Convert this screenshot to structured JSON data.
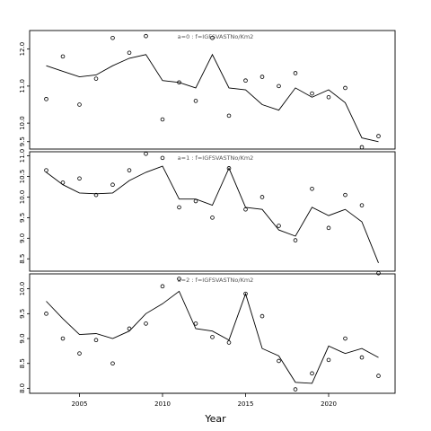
{
  "chart_data": {
    "type": "line",
    "xlabel": "Year",
    "x_ticks": [
      2005,
      2010,
      2015,
      2020
    ],
    "xlim": [
      2002,
      2024
    ],
    "colors": {
      "line": "#000000",
      "points": "#000000",
      "panel_title": "#555555"
    },
    "panels": [
      {
        "title": "a=0  :  f=IGFSVASTNo/Km2",
        "ylim": [
          9.3,
          12.5
        ],
        "y_ticks": [
          9.5,
          10.0,
          11.0,
          12.0
        ],
        "y_tick_labels": [
          "9.5",
          "10.0",
          "11.0",
          "12.0"
        ],
        "points": {
          "x": [
            2003,
            2004,
            2005,
            2006,
            2007,
            2008,
            2009,
            2010,
            2011,
            2012,
            2013,
            2014,
            2015,
            2016,
            2017,
            2018,
            2019,
            2020,
            2021,
            2022,
            2023
          ],
          "y": [
            10.65,
            11.8,
            10.5,
            11.2,
            12.3,
            11.9,
            12.35,
            10.1,
            11.1,
            10.6,
            12.3,
            10.2,
            11.15,
            11.25,
            11.0,
            11.35,
            10.8,
            10.7,
            10.95,
            9.35,
            9.65
          ]
        },
        "fit": {
          "x": [
            2003,
            2004,
            2005,
            2006,
            2007,
            2008,
            2009,
            2010,
            2011,
            2012,
            2013,
            2014,
            2015,
            2016,
            2017,
            2018,
            2019,
            2020,
            2021,
            2022,
            2023
          ],
          "y": [
            11.55,
            11.4,
            11.25,
            11.3,
            11.55,
            11.75,
            11.85,
            11.15,
            11.1,
            10.95,
            11.85,
            10.95,
            10.9,
            10.5,
            10.35,
            10.95,
            10.7,
            10.9,
            10.55,
            9.6,
            9.5
          ]
        }
      },
      {
        "title": "a=1  :  f=IGFSVASTNo/Km2",
        "ylim": [
          8.2,
          11.1
        ],
        "y_ticks": [
          8.5,
          9.0,
          9.5,
          10.0,
          10.5,
          11.0
        ],
        "y_tick_labels": [
          "8.5",
          "9.0",
          "9.5",
          "10.0",
          "10.5",
          "11.0"
        ],
        "points": {
          "x": [
            2003,
            2004,
            2005,
            2006,
            2007,
            2008,
            2009,
            2010,
            2011,
            2012,
            2013,
            2014,
            2015,
            2016,
            2017,
            2018,
            2019,
            2020,
            2021,
            2022,
            2023
          ],
          "y": [
            10.65,
            10.35,
            10.45,
            10.05,
            10.3,
            10.65,
            11.05,
            10.95,
            9.75,
            9.9,
            9.5,
            10.7,
            9.7,
            10.0,
            9.3,
            8.95,
            10.2,
            9.25,
            10.05,
            9.8,
            8.15
          ]
        },
        "fit": {
          "x": [
            2003,
            2004,
            2005,
            2006,
            2007,
            2008,
            2009,
            2010,
            2011,
            2012,
            2013,
            2014,
            2015,
            2016,
            2017,
            2018,
            2019,
            2020,
            2021,
            2022,
            2023
          ],
          "y": [
            10.6,
            10.3,
            10.1,
            10.08,
            10.1,
            10.4,
            10.6,
            10.75,
            9.95,
            9.95,
            9.8,
            10.7,
            9.75,
            9.7,
            9.2,
            9.05,
            9.75,
            9.55,
            9.7,
            9.4,
            8.4
          ]
        }
      },
      {
        "title": "a=2  :  f=IGFSVASTNo/Km2",
        "ylim": [
          7.9,
          10.3
        ],
        "y_ticks": [
          8.0,
          8.5,
          9.0,
          9.5,
          10.0
        ],
        "y_tick_labels": [
          "8.0",
          "8.5",
          "9.0",
          "9.5",
          "10.0"
        ],
        "points": {
          "x": [
            2003,
            2004,
            2005,
            2006,
            2007,
            2008,
            2009,
            2010,
            2011,
            2012,
            2013,
            2014,
            2015,
            2016,
            2017,
            2018,
            2019,
            2020,
            2021,
            2022,
            2023
          ],
          "y": [
            9.5,
            9.0,
            8.7,
            8.97,
            8.5,
            9.2,
            9.3,
            10.05,
            10.2,
            9.3,
            9.03,
            8.92,
            9.9,
            9.45,
            8.55,
            7.98,
            8.3,
            8.57,
            9.0,
            8.62,
            8.25
          ]
        },
        "fit": {
          "x": [
            2003,
            2004,
            2005,
            2006,
            2007,
            2008,
            2009,
            2010,
            2011,
            2012,
            2013,
            2014,
            2015,
            2016,
            2017,
            2018,
            2019,
            2020,
            2021,
            2022,
            2023
          ],
          "y": [
            9.75,
            9.4,
            9.08,
            9.1,
            9.0,
            9.15,
            9.5,
            9.7,
            9.95,
            9.2,
            9.15,
            8.97,
            9.9,
            8.8,
            8.65,
            8.12,
            8.1,
            8.85,
            8.7,
            8.8,
            8.62
          ]
        }
      }
    ]
  }
}
